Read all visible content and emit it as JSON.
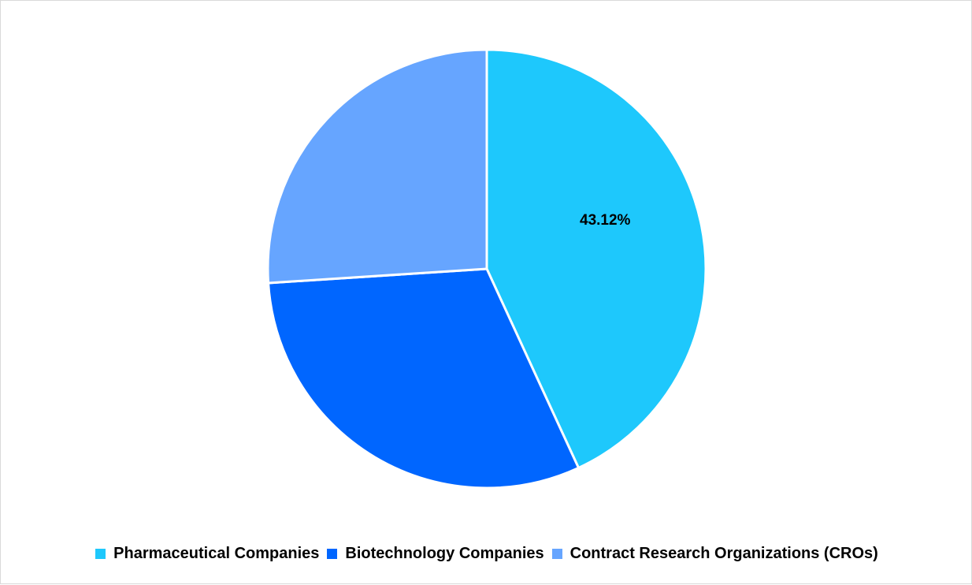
{
  "chart_data": {
    "type": "pie",
    "title": "",
    "categories": [
      "Pharmaceutical Companies",
      "Biotechnology Companies",
      "Contract Research Organizations (CROs)"
    ],
    "values": [
      43.12,
      30.85,
      26.03
    ],
    "colors": [
      "#1ec8fc",
      "#0066ff",
      "#66a5ff"
    ],
    "data_labels": [
      {
        "category": "Pharmaceutical Companies",
        "text": "43.12%"
      }
    ],
    "start_angle_deg": 0,
    "direction": "clockwise",
    "legend_position": "bottom"
  },
  "labels": {
    "slice0": "43.12%"
  },
  "legend": {
    "items": [
      {
        "label": "Pharmaceutical Companies",
        "color": "#1ec8fc"
      },
      {
        "label": "Biotechnology Companies",
        "color": "#0066ff"
      },
      {
        "label": "Contract Research Organizations (CROs)",
        "color": "#66a5ff"
      }
    ]
  }
}
